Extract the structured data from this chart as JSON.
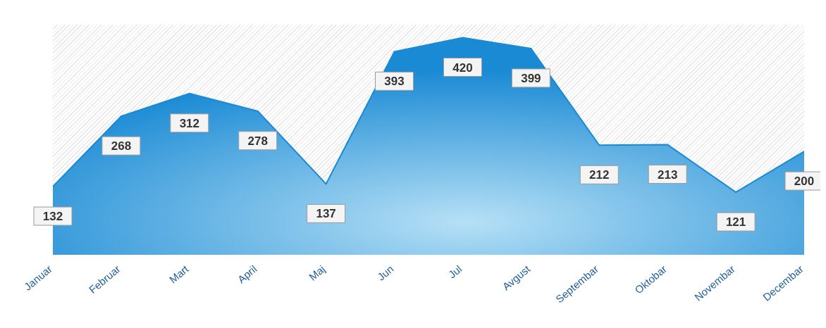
{
  "chart_data": {
    "type": "area",
    "categories": [
      "Januar",
      "Februar",
      "Mart",
      "April",
      "Maj",
      "Jun",
      "Jul",
      "Avgust",
      "Septembar",
      "Oktobar",
      "Novembar",
      "Decembar"
    ],
    "values": [
      132,
      268,
      312,
      278,
      137,
      393,
      420,
      399,
      212,
      213,
      121,
      200
    ],
    "color": "#1a8ad4",
    "data_labels": true
  }
}
